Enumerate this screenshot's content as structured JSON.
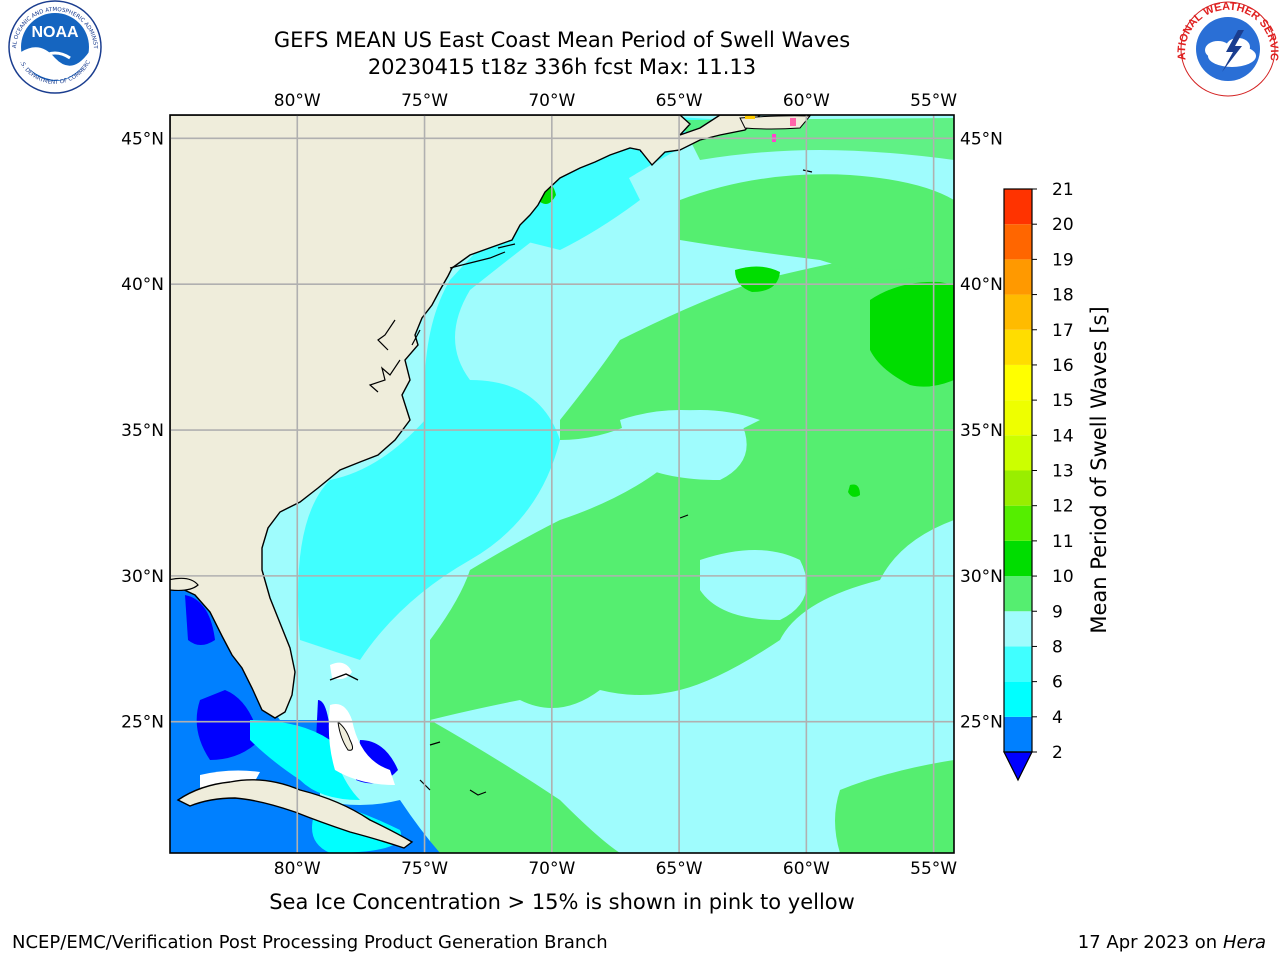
{
  "header": {
    "title_line1": "GEFS MEAN US East Coast Mean Period of Swell Waves",
    "title_line2": "20230415 t18z 336h fcst   Max: 11.13"
  },
  "logos": {
    "left": "noaa-logo",
    "right": "national-weather-service-logo",
    "left_ring_text": "NATIONAL OCEANIC AND ATMOSPHERIC ADMINISTRATION",
    "left_center_text": "NOAA",
    "left_bottom_text": "U.S. DEPARTMENT OF COMMERCE",
    "right_ring_text": "NATIONAL WEATHER SERVICE"
  },
  "map": {
    "lon_labels": [
      "80°W",
      "75°W",
      "70°W",
      "65°W",
      "60°W",
      "55°W"
    ],
    "lat_labels": [
      "45°N",
      "40°N",
      "35°N",
      "30°N",
      "25°N"
    ],
    "lon_values": [
      -80,
      -75,
      -70,
      -65,
      -60,
      -55
    ],
    "lat_values": [
      45,
      40,
      35,
      30,
      25
    ],
    "extent": {
      "lon": [
        -85,
        -54.2
      ],
      "lat": [
        20.5,
        45.8
      ]
    },
    "colors": {
      "land": "#efeddb",
      "ocean_base": "#9ffcfd",
      "grid": "#b0b0b0",
      "coast": "#000000"
    }
  },
  "colorbar": {
    "label": "Mean Period of Swell Waves [s]",
    "ticks": [
      "2",
      "4",
      "6",
      "8",
      "9",
      "10",
      "11",
      "12",
      "13",
      "14",
      "15",
      "16",
      "17",
      "18",
      "19",
      "20",
      "21"
    ],
    "colors": [
      "#0080ff",
      "#00ffff",
      "#40ffff",
      "#9ffcfd",
      "#55ee70",
      "#00dd00",
      "#55ee00",
      "#99ee00",
      "#ccff00",
      "#eeff00",
      "#ffff00",
      "#ffdd00",
      "#ffbb00",
      "#ff9900",
      "#ff6600",
      "#ff3300",
      "#ff0000"
    ],
    "under_color": "#0000ff"
  },
  "footer": {
    "ice_note": "Sea Ice Concentration > 15% is shown in pink to yellow",
    "credit_left": "NCEP/EMC/Verification Post Processing Product Generation Branch",
    "credit_right_prefix": "17 Apr 2023 on ",
    "credit_right_machine": "Hera"
  }
}
